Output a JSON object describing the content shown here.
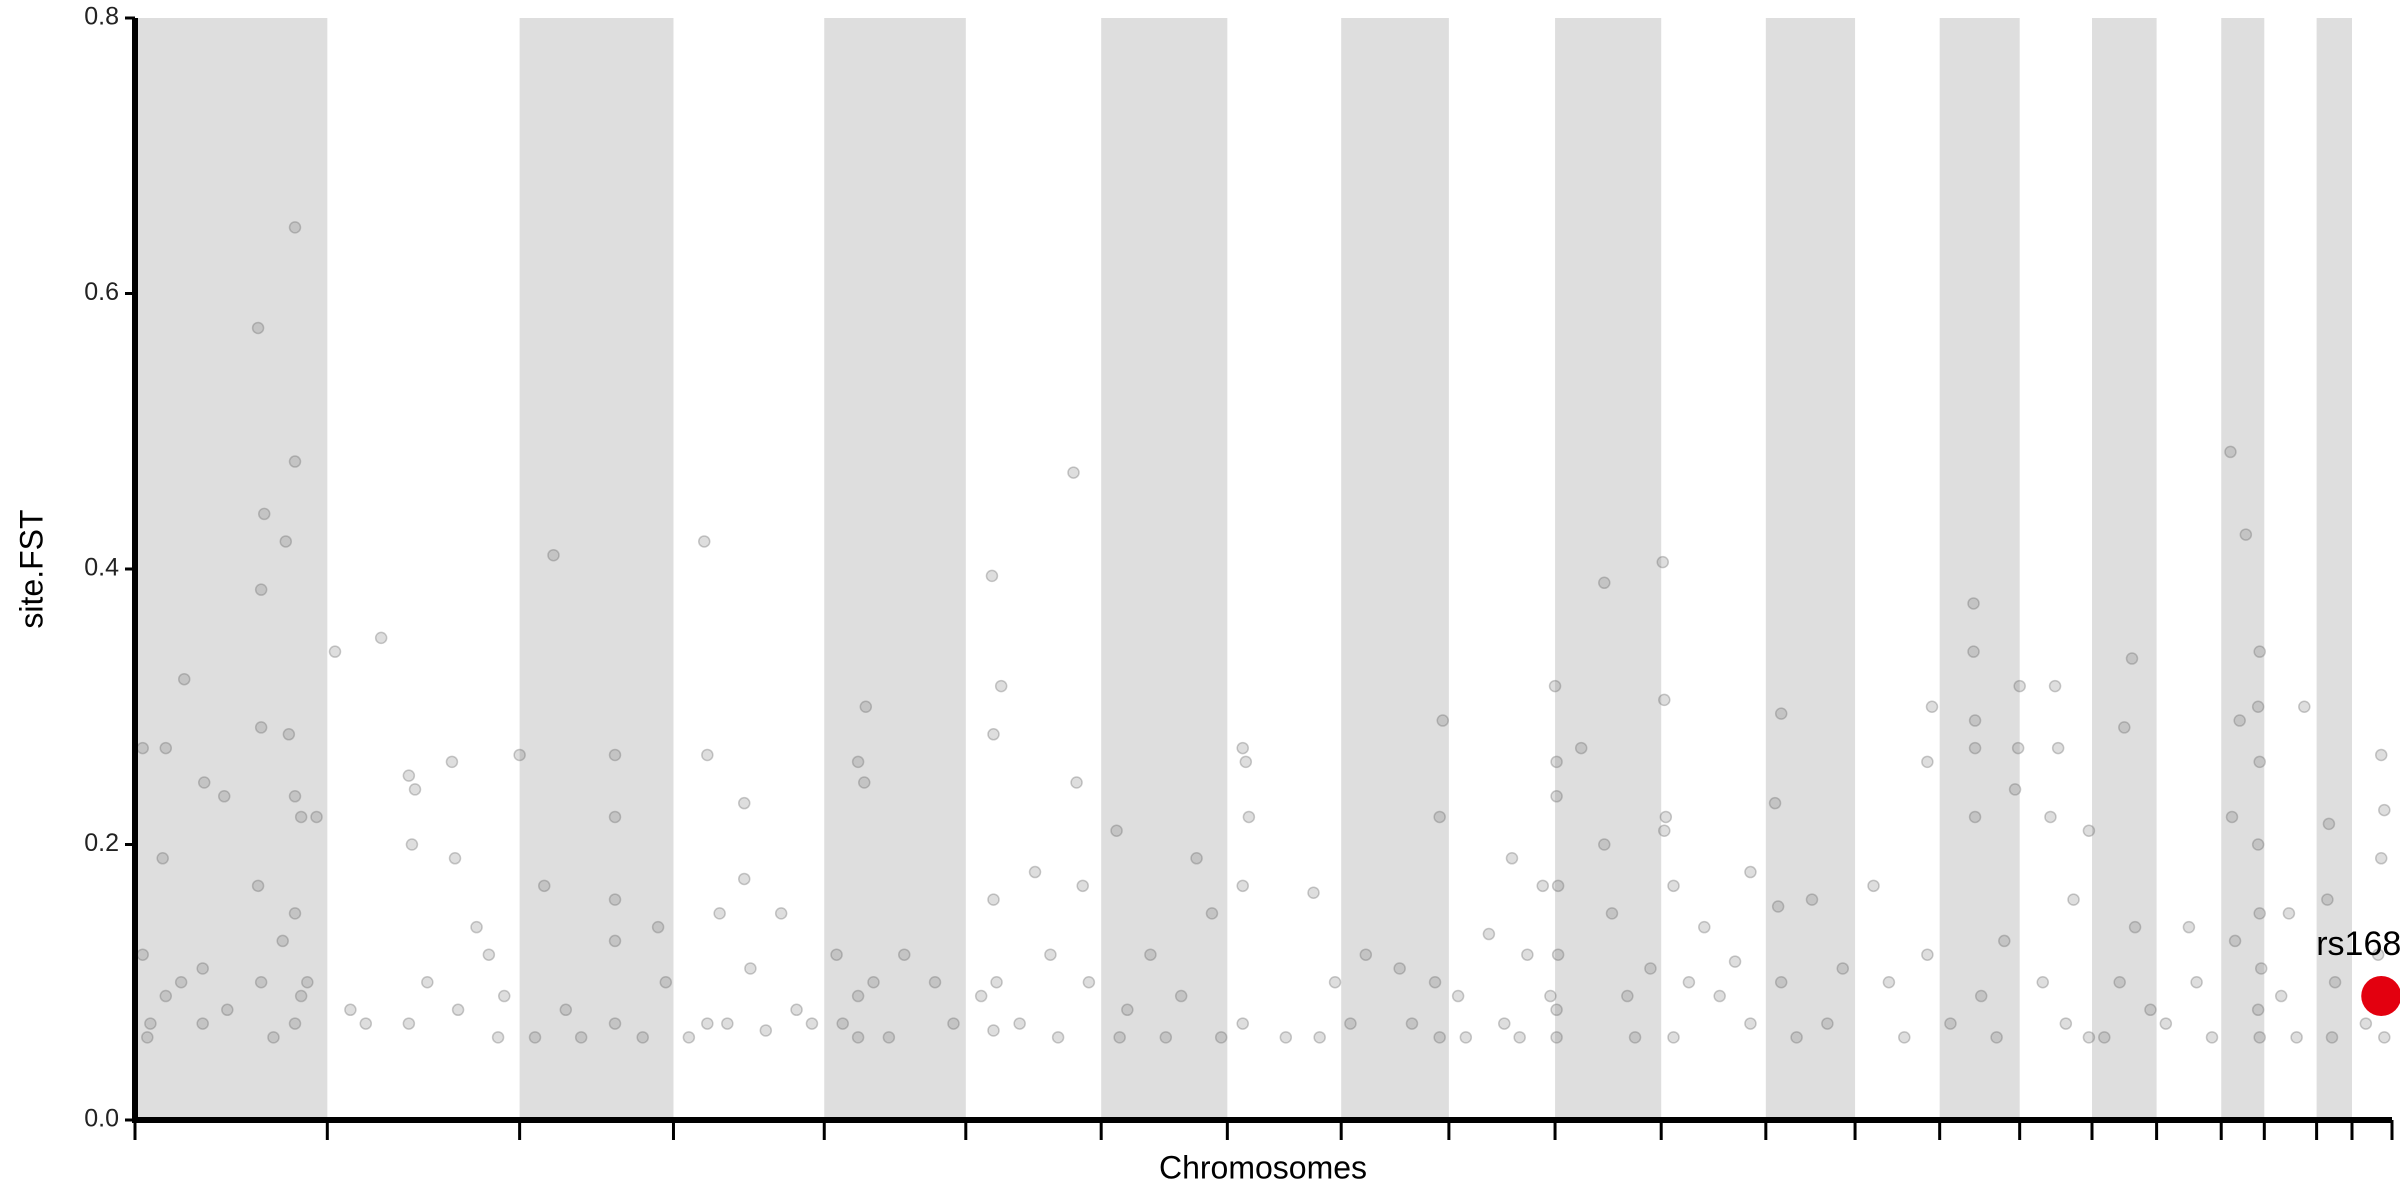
{
  "chart_data": {
    "type": "scatter",
    "y_label": "site.FST",
    "x_label": "Chromosomes",
    "color": "#6b6b6b",
    "band_color": "#dedede",
    "ylim": [
      0,
      0.8
    ],
    "yticks": [
      {
        "value": 0,
        "label": "0.0"
      },
      0.2,
      0.4,
      0.6,
      0.8
    ],
    "xlim": [
      0,
      1467
    ],
    "xticks": [
      0,
      125,
      250,
      350,
      448,
      540,
      628,
      710,
      784,
      854,
      923,
      992,
      1060,
      1118,
      1173,
      1225,
      1272,
      1314,
      1356,
      1384,
      1418,
      1441,
      1467
    ],
    "x": [
      5,
      5,
      18,
      20,
      32,
      45,
      58,
      80,
      82,
      84,
      82,
      98,
      100,
      104,
      104,
      104,
      108,
      118,
      10,
      20,
      30,
      44,
      44,
      60,
      80,
      82,
      90,
      96,
      104,
      104,
      108,
      112,
      8,
      130,
      160,
      178,
      180,
      182,
      206,
      208,
      222,
      230,
      178,
      190,
      210,
      140,
      150,
      236,
      240,
      250,
      272,
      266,
      312,
      312,
      312,
      312,
      260,
      280,
      312,
      340,
      345,
      290,
      330,
      370,
      372,
      372,
      396,
      396,
      380,
      420,
      400,
      410,
      360,
      385,
      430,
      440,
      470,
      475,
      474,
      456,
      470,
      480,
      470,
      500,
      520,
      532,
      460,
      490,
      557,
      558,
      558,
      560,
      558,
      563,
      550,
      575,
      595,
      610,
      612,
      616,
      620,
      600,
      585,
      638,
      640,
      660,
      680,
      700,
      706,
      690,
      645,
      670,
      720,
      722,
      720,
      724,
      720,
      748,
      766,
      780,
      790,
      770,
      822,
      850,
      848,
      845,
      848,
      800,
      830,
      860,
      865,
      880,
      895,
      890,
      900,
      905,
      915,
      920,
      923,
      924,
      924,
      925,
      925,
      924,
      924,
      940,
      955,
      955,
      960,
      970,
      975,
      985,
      993,
      994,
      995,
      994,
      1000,
      1010,
      1020,
      1040,
      1030,
      1050,
      1000,
      1070,
      1066,
      1068,
      1050,
      1070,
      1090,
      1100,
      1110,
      1080,
      1130,
      1140,
      1150,
      1165,
      1168,
      1165,
      1195,
      1195,
      1196,
      1196,
      1196,
      1225,
      1224,
      1215,
      1200,
      1180,
      1210,
      1222,
      1248,
      1250,
      1245,
      1270,
      1260,
      1240,
      1255,
      1270,
      1298,
      1293,
      1300,
      1290,
      1280,
      1310,
      1335,
      1340,
      1320,
      1350,
      1362,
      1363,
      1372,
      1381,
      1380,
      1381,
      1380,
      1381,
      1382,
      1380,
      1381,
      1368,
      1365,
      1410,
      1400,
      1395,
      1405,
      1426,
      1425,
      1430,
      1428,
      1460,
      1462,
      1460,
      1458,
      1450,
      1462
    ],
    "values": [
      0.12,
      0.27,
      0.19,
      0.27,
      0.32,
      0.245,
      0.235,
      0.575,
      0.285,
      0.44,
      0.385,
      0.42,
      0.28,
      0.648,
      0.478,
      0.235,
      0.22,
      0.22,
      0.07,
      0.09,
      0.1,
      0.07,
      0.11,
      0.08,
      0.17,
      0.1,
      0.06,
      0.13,
      0.07,
      0.15,
      0.09,
      0.1,
      0.06,
      0.34,
      0.35,
      0.25,
      0.2,
      0.24,
      0.26,
      0.19,
      0.14,
      0.12,
      0.07,
      0.1,
      0.08,
      0.08,
      0.07,
      0.06,
      0.09,
      0.265,
      0.41,
      0.17,
      0.265,
      0.22,
      0.16,
      0.13,
      0.06,
      0.08,
      0.07,
      0.14,
      0.1,
      0.06,
      0.06,
      0.42,
      0.265,
      0.07,
      0.23,
      0.175,
      0.15,
      0.15,
      0.11,
      0.065,
      0.06,
      0.07,
      0.08,
      0.07,
      0.26,
      0.3,
      0.245,
      0.12,
      0.09,
      0.1,
      0.06,
      0.12,
      0.1,
      0.07,
      0.07,
      0.06,
      0.395,
      0.28,
      0.16,
      0.1,
      0.065,
      0.315,
      0.09,
      0.07,
      0.12,
      0.47,
      0.245,
      0.17,
      0.1,
      0.06,
      0.18,
      0.21,
      0.06,
      0.12,
      0.09,
      0.15,
      0.06,
      0.19,
      0.08,
      0.06,
      0.27,
      0.26,
      0.17,
      0.22,
      0.07,
      0.06,
      0.165,
      0.1,
      0.07,
      0.06,
      0.11,
      0.29,
      0.22,
      0.1,
      0.06,
      0.12,
      0.07,
      0.09,
      0.06,
      0.135,
      0.19,
      0.07,
      0.06,
      0.12,
      0.17,
      0.09,
      0.315,
      0.26,
      0.235,
      0.17,
      0.12,
      0.08,
      0.06,
      0.27,
      0.39,
      0.2,
      0.15,
      0.09,
      0.06,
      0.11,
      0.405,
      0.305,
      0.22,
      0.21,
      0.17,
      0.1,
      0.14,
      0.115,
      0.09,
      0.07,
      0.06,
      0.295,
      0.23,
      0.155,
      0.18,
      0.1,
      0.16,
      0.07,
      0.11,
      0.06,
      0.17,
      0.1,
      0.06,
      0.12,
      0.3,
      0.26,
      0.375,
      0.34,
      0.29,
      0.27,
      0.22,
      0.315,
      0.27,
      0.13,
      0.09,
      0.07,
      0.06,
      0.24,
      0.315,
      0.27,
      0.22,
      0.21,
      0.16,
      0.1,
      0.07,
      0.06,
      0.335,
      0.285,
      0.14,
      0.1,
      0.06,
      0.08,
      0.14,
      0.1,
      0.07,
      0.06,
      0.485,
      0.22,
      0.425,
      0.34,
      0.3,
      0.26,
      0.2,
      0.15,
      0.11,
      0.08,
      0.06,
      0.29,
      0.13,
      0.3,
      0.15,
      0.09,
      0.06,
      0.215,
      0.16,
      0.1,
      0.06,
      0.265,
      0.225,
      0.19,
      0.12,
      0.07,
      0.06
    ],
    "highlight": {
      "label": "rs168",
      "x": 1460,
      "value": 0.09,
      "color": "#e3000f"
    }
  }
}
